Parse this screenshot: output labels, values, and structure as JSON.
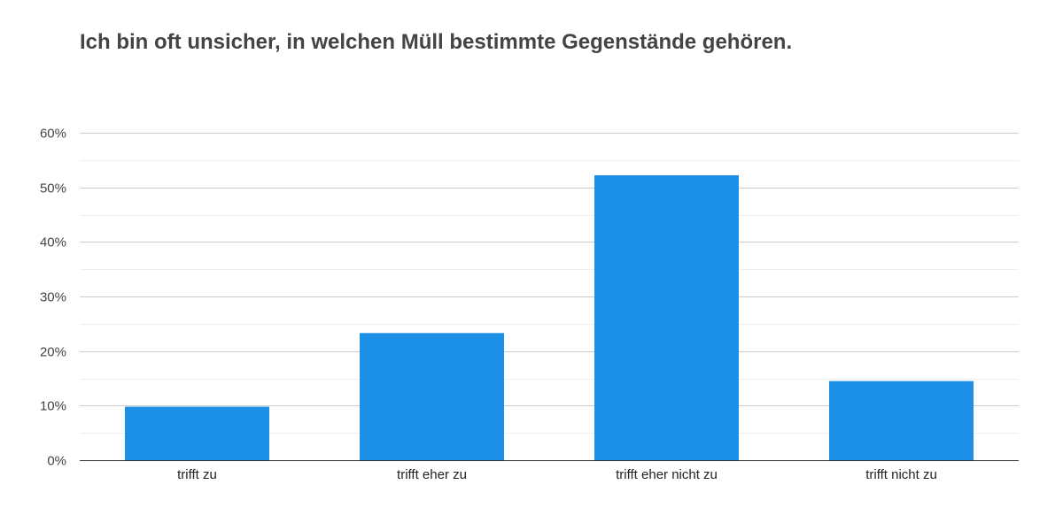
{
  "chart_data": {
    "type": "bar",
    "title": "Ich bin oft unsicher, in welchen Müll bestimmte Gegenstände gehören.",
    "xlabel": "",
    "ylabel": "",
    "categories": [
      "trifft zu",
      "trifft eher zu",
      "trifft eher nicht zu",
      "trifft nicht zu"
    ],
    "values": [
      9.8,
      23.3,
      52.2,
      14.5
    ],
    "ylim": [
      0,
      60
    ],
    "yticks": [
      0,
      10,
      20,
      30,
      40,
      50,
      60
    ],
    "ytick_labels": [
      "0%",
      "10%",
      "20%",
      "30%",
      "40%",
      "50%",
      "60%"
    ],
    "grid": true,
    "legend": "none",
    "bar_color": "#1b90e6",
    "grid_color": "#cccccc",
    "minor_grid_color": "#eeeeee",
    "axis_color": "#333333"
  }
}
